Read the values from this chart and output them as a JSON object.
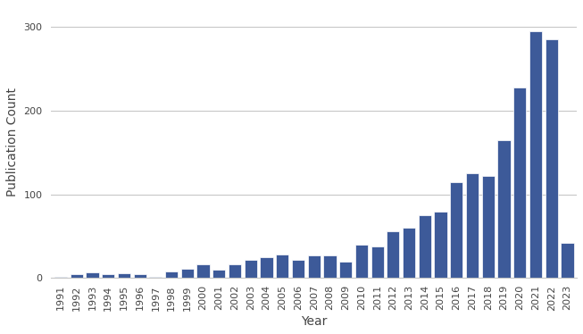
{
  "years": [
    1991,
    1992,
    1993,
    1994,
    1995,
    1996,
    1997,
    1998,
    1999,
    2000,
    2001,
    2002,
    2003,
    2004,
    2005,
    2006,
    2007,
    2008,
    2009,
    2010,
    2011,
    2012,
    2013,
    2014,
    2015,
    2016,
    2017,
    2018,
    2019,
    2020,
    2021,
    2022,
    2023
  ],
  "counts": [
    2,
    5,
    7,
    5,
    6,
    5,
    2,
    8,
    11,
    17,
    10,
    17,
    22,
    25,
    28,
    22,
    27,
    27,
    20,
    40,
    38,
    56,
    60,
    75,
    80,
    115,
    125,
    122,
    165,
    228,
    295,
    285,
    42
  ],
  "bar_color": "#3d5a99",
  "xlabel": "Year",
  "ylabel": "Publication Count",
  "ylim": [
    0,
    325
  ],
  "yticks": [
    0,
    100,
    200,
    300
  ],
  "background_color": "#ffffff",
  "grid_color": "#c8c8c8",
  "axis_fontsize": 10,
  "tick_fontsize": 8
}
